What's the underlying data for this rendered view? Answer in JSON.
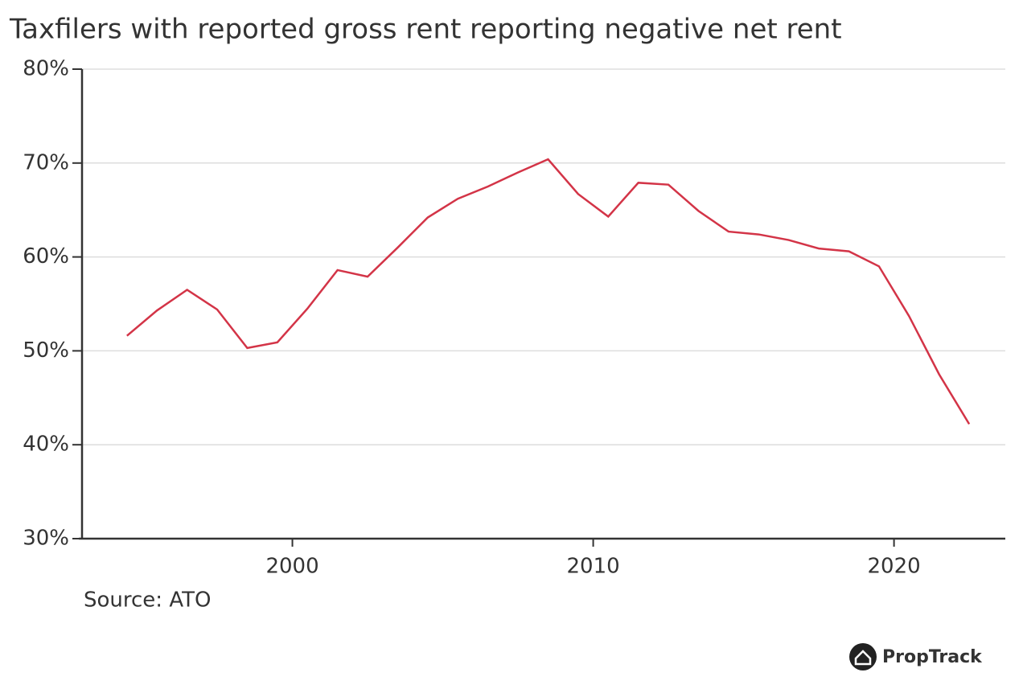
{
  "chart_data": {
    "type": "line",
    "title": "Taxfilers with reported gross rent reporting negative net rent",
    "source": "Source: ATO",
    "brand": "PropTrack",
    "x": [
      1994.5,
      1995.5,
      1996.5,
      1997.5,
      1998.5,
      1999.5,
      2000.5,
      2001.5,
      2002.5,
      2003.5,
      2004.5,
      2005.5,
      2006.5,
      2007.5,
      2008.5,
      2009.5,
      2010.5,
      2011.5,
      2012.5,
      2013.5,
      2014.5,
      2015.5,
      2016.5,
      2017.5,
      2018.5,
      2019.5,
      2020.5,
      2021.5,
      2022.5
    ],
    "series": [
      {
        "color": "#d33447",
        "values": [
          51.6,
          54.3,
          56.5,
          54.4,
          50.3,
          50.9,
          54.5,
          58.6,
          57.9,
          61.0,
          64.2,
          66.2,
          67.5,
          69.0,
          70.4,
          66.7,
          64.3,
          67.9,
          67.7,
          64.9,
          62.7,
          62.4,
          61.8,
          60.9,
          60.6,
          59.0,
          53.7,
          47.5,
          42.2
        ]
      }
    ],
    "xlim": [
      1992.9,
      2023.7
    ],
    "xticks": [
      2000,
      2010,
      2020
    ],
    "ylim": [
      30,
      80
    ],
    "yticks": [
      {
        "value": 30,
        "label": "30%"
      },
      {
        "value": 40,
        "label": "40%"
      },
      {
        "value": 50,
        "label": "50%"
      },
      {
        "value": 60,
        "label": "60%"
      },
      {
        "value": 70,
        "label": "70%"
      },
      {
        "value": 80,
        "label": "80%"
      }
    ],
    "grid": true
  }
}
